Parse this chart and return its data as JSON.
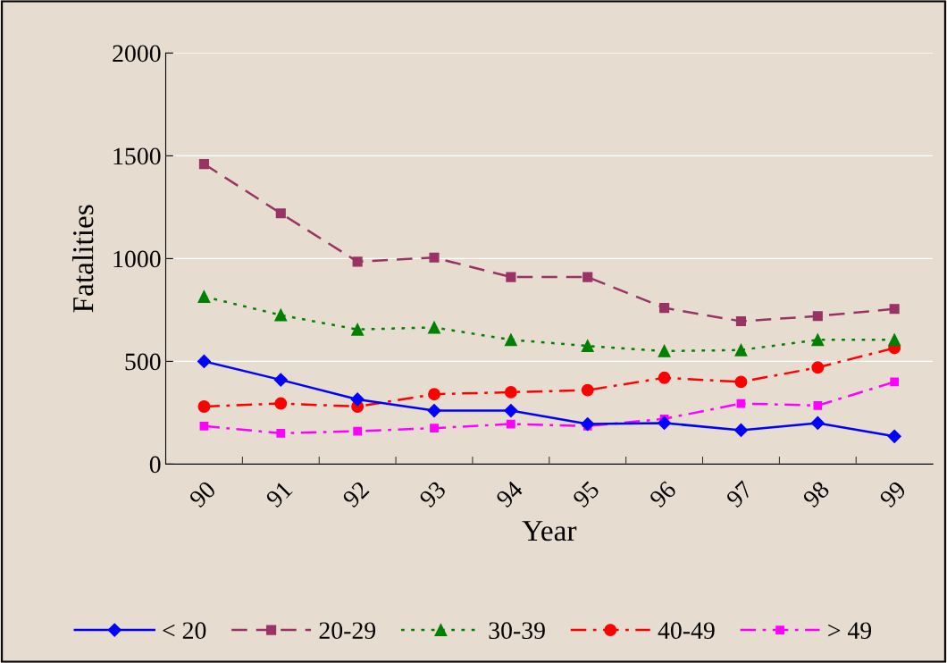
{
  "chart_data": {
    "type": "line",
    "xlabel": "Year",
    "ylabel": "Fatalities",
    "categories": [
      "90",
      "91",
      "92",
      "93",
      "94",
      "95",
      "96",
      "97",
      "98",
      "99"
    ],
    "series": [
      {
        "name": "< 20",
        "color": "#0000ff",
        "marker": "diamond",
        "line_style": "solid",
        "values": [
          500,
          410,
          315,
          260,
          260,
          195,
          200,
          165,
          200,
          135
        ]
      },
      {
        "name": "20-29",
        "color": "#993366",
        "marker": "square",
        "line_style": "dashed",
        "values": [
          1460,
          1220,
          985,
          1005,
          910,
          910,
          760,
          695,
          720,
          755
        ]
      },
      {
        "name": "30-39",
        "color": "#008000",
        "marker": "triangle",
        "line_style": "dotted",
        "values": [
          815,
          725,
          655,
          665,
          605,
          575,
          550,
          555,
          605,
          605
        ]
      },
      {
        "name": "40-49",
        "color": "#ff0000",
        "marker": "circle",
        "line_style": "dashdot",
        "values": [
          280,
          295,
          280,
          340,
          350,
          360,
          420,
          400,
          470,
          565
        ]
      },
      {
        "name": "> 49",
        "color": "#ff00ff",
        "marker": "square",
        "line_style": "dashdot",
        "values": [
          185,
          150,
          160,
          175,
          195,
          185,
          220,
          295,
          285,
          400
        ]
      }
    ],
    "ylim": [
      0,
      2000
    ],
    "yticks": [
      0,
      500,
      1000,
      1500,
      2000
    ],
    "grid": "y",
    "legend": "bottom"
  }
}
